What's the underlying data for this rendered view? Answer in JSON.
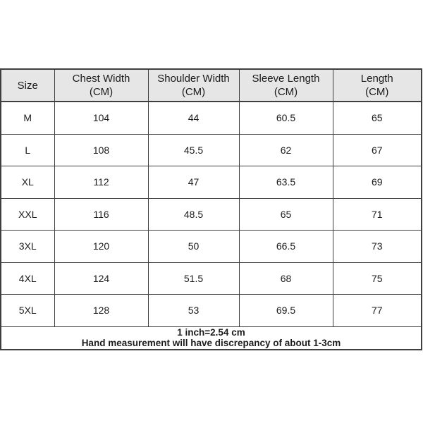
{
  "colors": {
    "header_bg": "#e6e6e6",
    "border": "#3f3f3f",
    "text": "#1b1b1b",
    "page_bg": "#ffffff"
  },
  "table": {
    "columns": [
      {
        "key": "size",
        "title": "Size",
        "unit": ""
      },
      {
        "key": "chest-width",
        "title": "Chest Width",
        "unit": "(CM)"
      },
      {
        "key": "shoulder-width",
        "title": "Shoulder Width",
        "unit": "(CM)"
      },
      {
        "key": "sleeve-length",
        "title": "Sleeve Length",
        "unit": "(CM)"
      },
      {
        "key": "length",
        "title": "Length",
        "unit": "(CM)"
      }
    ],
    "rows": [
      [
        "M",
        "104",
        "44",
        "60.5",
        "65"
      ],
      [
        "L",
        "108",
        "45.5",
        "62",
        "67"
      ],
      [
        "XL",
        "112",
        "47",
        "63.5",
        "69"
      ],
      [
        "XXL",
        "116",
        "48.5",
        "65",
        "71"
      ],
      [
        "3XL",
        "120",
        "50",
        "66.5",
        "73"
      ],
      [
        "4XL",
        "124",
        "51.5",
        "68",
        "75"
      ],
      [
        "5XL",
        "128",
        "53",
        "69.5",
        "77"
      ]
    ],
    "notes": {
      "line1": "1 inch=2.54 cm",
      "line2": "Hand measurement will have discrepancy of about 1-3cm"
    }
  },
  "chart_data": {
    "type": "table",
    "columns": [
      "Size",
      "Chest Width (CM)",
      "Shoulder Width (CM)",
      "Sleeve Length (CM)",
      "Length (CM)"
    ],
    "rows": [
      [
        "M",
        104,
        44,
        60.5,
        65
      ],
      [
        "L",
        108,
        45.5,
        62,
        67
      ],
      [
        "XL",
        112,
        47,
        63.5,
        69
      ],
      [
        "XXL",
        116,
        48.5,
        65,
        71
      ],
      [
        "3XL",
        120,
        50,
        66.5,
        73
      ],
      [
        "4XL",
        124,
        51.5,
        68,
        75
      ],
      [
        "5XL",
        128,
        53,
        69.5,
        77
      ]
    ],
    "notes": [
      "1 inch=2.54 cm",
      "Hand measurement will have discrepancy of about 1-3cm"
    ],
    "layout_hints": {
      "header_background": "#e6e6e6",
      "grid": true,
      "footer_rowspan": "all-columns"
    }
  }
}
